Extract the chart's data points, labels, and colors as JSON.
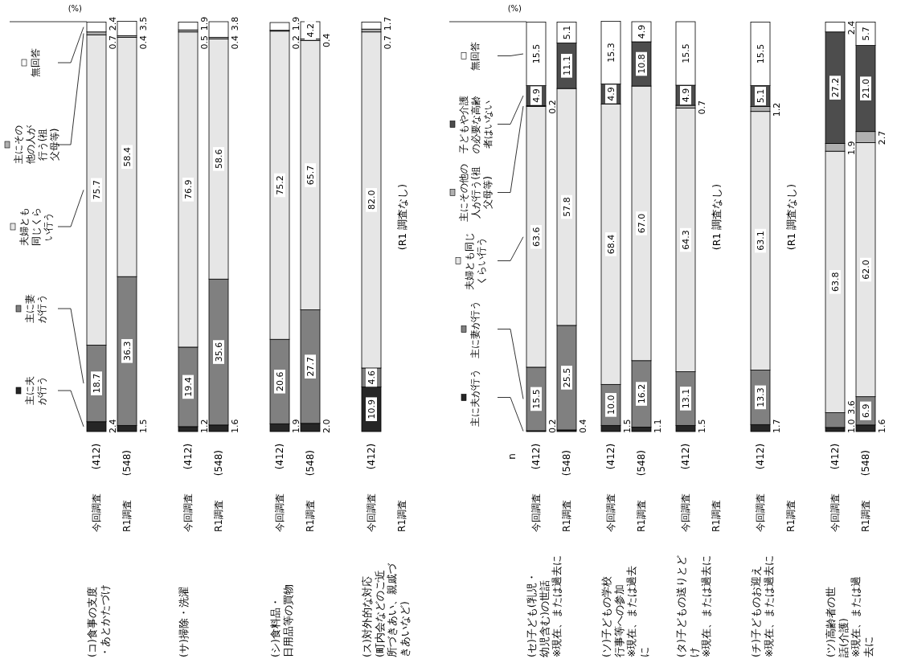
{
  "chart_data": [
    {
      "type": "bar",
      "stacked": true,
      "legend": "left",
      "tick_labels": "x",
      "ylim": [
        0,
        100
      ],
      "categories": [
        "今回調査 (412)",
        "R1調査 (548)",
        "今回調査 (412)",
        "R1調査 (548)",
        "今回調査 (412)",
        "R1調査 (548)",
        "今回調査 (412)",
        "R1調査"
      ],
      "series": [
        {
          "name": "主に夫が行う",
          "color": "#262626",
          "values": [
            2.4,
            1.5,
            1.2,
            1.6,
            1.9,
            2.0,
            10.9,
            null
          ],
          "value_labels": [
            "2.4",
            "1.5",
            "1.2",
            "1.6",
            "1.9",
            "2.0",
            "10.9",
            null
          ]
        },
        {
          "name": "主に妻が行う",
          "color": "#808080",
          "values": [
            18.7,
            36.3,
            19.4,
            35.6,
            20.6,
            27.7,
            4.6,
            null
          ],
          "value_labels": [
            "18.7",
            "36.3",
            "19.4",
            "35.6",
            "20.6",
            "27.7",
            "4.6",
            null
          ]
        },
        {
          "name": "夫婦とも同じくらい行う",
          "color": "#e6e6e6",
          "values": [
            75.7,
            58.4,
            76.9,
            58.6,
            75.2,
            65.7,
            82.0,
            null
          ],
          "value_labels": [
            "75.7",
            "58.4",
            "76.9",
            "58.6",
            "75.2",
            "65.7",
            "82.0",
            null
          ]
        },
        {
          "name": "主にその他の人が行う(祖父母等)",
          "color": "#b0b0b0",
          "values": [
            0.7,
            0.4,
            0.5,
            0.4,
            0.2,
            0.4,
            0.7,
            null
          ],
          "value_labels": [
            "0.7",
            "0.4",
            "0.5",
            "0.4",
            "0.2",
            "0.4",
            "0.7",
            null
          ]
        },
        {
          "name": "無回答",
          "color": "#ffffff",
          "values": [
            2.4,
            3.5,
            1.9,
            3.8,
            1.9,
            4.2,
            1.7,
            null
          ],
          "value_labels": [
            "2.4",
            "3.5",
            "1.9",
            "3.8",
            "1.9",
            "4.2",
            "1.7",
            null
          ]
        }
      ],
      "annotations": [
        "(%)",
        "(コ)食事の支度・あとかたづけ",
        "(サ)掃除・洗濯",
        "(シ)食料品・日用品等の買物",
        "(ス)対外的な対応(町内会などのご近所づきあい、親戚づきあいなど)",
        "(R1 調査なし)"
      ]
    },
    {
      "type": "bar",
      "stacked": true,
      "legend": "left",
      "tick_labels": "x",
      "ylim": [
        0,
        100
      ],
      "categories": [
        "今回調査 (412)",
        "R1調査 (548)",
        "今回調査 (412)",
        "R1調査 (548)",
        "今回調査 (412)",
        "R1調査",
        "今回調査 (412)",
        "R1調査",
        "今回調査 (412)",
        "R1調査 (548)"
      ],
      "series": [
        {
          "name": "主に夫が行う",
          "color": "#262626",
          "values": [
            0.2,
            0.4,
            1.5,
            1.1,
            1.5,
            null,
            1.7,
            null,
            1.0,
            1.6
          ],
          "value_labels": [
            "0.2",
            "0.4",
            "1.5",
            "1.1",
            "1.5",
            null,
            "1.7",
            null,
            "1.0",
            "1.6"
          ]
        },
        {
          "name": "主に妻が行う",
          "color": "#808080",
          "values": [
            15.5,
            25.5,
            10.0,
            16.2,
            13.1,
            null,
            13.3,
            null,
            3.6,
            6.9
          ],
          "value_labels": [
            "15.5",
            "25.5",
            "10.0",
            "16.2",
            "13.1",
            null,
            "13.3",
            null,
            "3.6",
            "6.9"
          ]
        },
        {
          "name": "夫婦とも同じくらい行う",
          "color": "#e6e6e6",
          "values": [
            63.6,
            57.8,
            68.4,
            67.0,
            64.3,
            null,
            63.1,
            null,
            63.8,
            62.0
          ],
          "value_labels": [
            "63.6",
            "57.8",
            "68.4",
            "67.0",
            "64.3",
            null,
            "63.1",
            null,
            "63.8",
            "62.0"
          ]
        },
        {
          "name": "主にその他の人が行う(祖父母等)",
          "color": "#b0b0b0",
          "values": [
            0.2,
            null,
            null,
            null,
            0.7,
            null,
            1.2,
            null,
            1.9,
            2.7
          ],
          "value_labels": [
            "0.2",
            null,
            null,
            null,
            "0.7",
            null,
            "1.2",
            null,
            "1.9",
            "2.7"
          ]
        },
        {
          "name": "子どもや介護の必要な高齢者はいない",
          "color": "#4d4d4d",
          "values": [
            4.9,
            11.1,
            4.9,
            10.8,
            4.9,
            null,
            5.1,
            null,
            27.2,
            21.0
          ],
          "value_labels": [
            "4.9",
            "11.1",
            "4.9",
            "10.8",
            "4.9",
            null,
            "5.1",
            null,
            "27.2",
            "21.0"
          ]
        },
        {
          "name": "無回答",
          "color": "#ffffff",
          "values": [
            15.5,
            5.1,
            15.3,
            4.9,
            15.5,
            null,
            15.5,
            null,
            2.4,
            5.7
          ],
          "value_labels": [
            "15.5",
            "5.1",
            "15.3",
            "4.9",
            "15.5",
            null,
            "15.5",
            null,
            "2.4",
            "5.7"
          ]
        }
      ],
      "annotations": [
        "(%)",
        "n",
        "(セ)子ども(乳児・幼児含む)の世話※現在、または過去に",
        "(ソ)子どもの学校行事等への参加※現在、または過去に",
        "(タ)子どもの送りとどけ※現在、または過去に",
        "(チ)子どものお迎え※現在、または過去に",
        "(ツ)高齢者の世話(介護)※現在、または過去に",
        "(R1 調査なし)",
        "(R1 調査なし)"
      ]
    }
  ]
}
